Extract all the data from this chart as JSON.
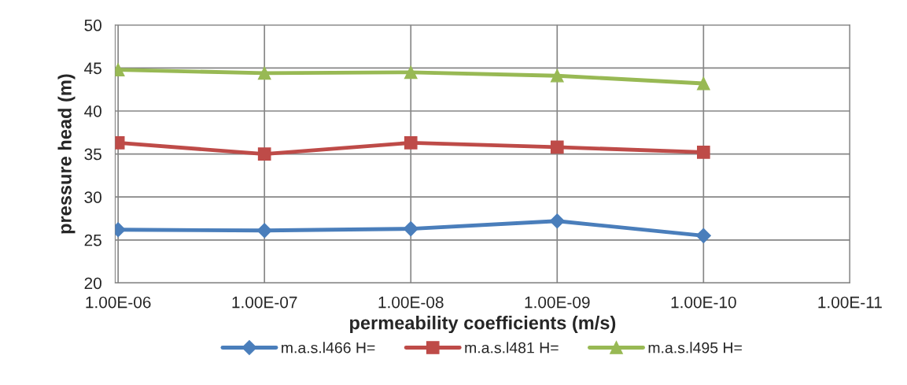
{
  "chart_data": {
    "type": "line",
    "xlabel": "permeability coefficients (m/s)",
    "ylabel": "pressure head (m)",
    "categories": [
      "1.00E-06",
      "1.00E-07",
      "1.00E-08",
      "1.00E-09",
      "1.00E-10",
      "1.00E-11"
    ],
    "series": [
      {
        "name": "m.a.s.l466 H=",
        "color": "#4a7ebb",
        "marker": "diamond",
        "values": [
          26.2,
          26.1,
          26.3,
          27.2,
          25.5,
          null
        ]
      },
      {
        "name": "m.a.s.l481 H=",
        "color": "#be4b48",
        "marker": "square",
        "values": [
          36.3,
          35.0,
          36.3,
          35.8,
          35.2,
          null
        ]
      },
      {
        "name": "m.a.s.l495 H=",
        "color": "#98b954",
        "marker": "triangle",
        "values": [
          44.8,
          44.4,
          44.5,
          44.1,
          43.2,
          null
        ]
      }
    ],
    "ylim": [
      20,
      50
    ],
    "yticks": [
      20,
      25,
      30,
      35,
      40,
      45,
      50
    ],
    "grid": true,
    "legend": "bottom",
    "line_style": "solid"
  }
}
